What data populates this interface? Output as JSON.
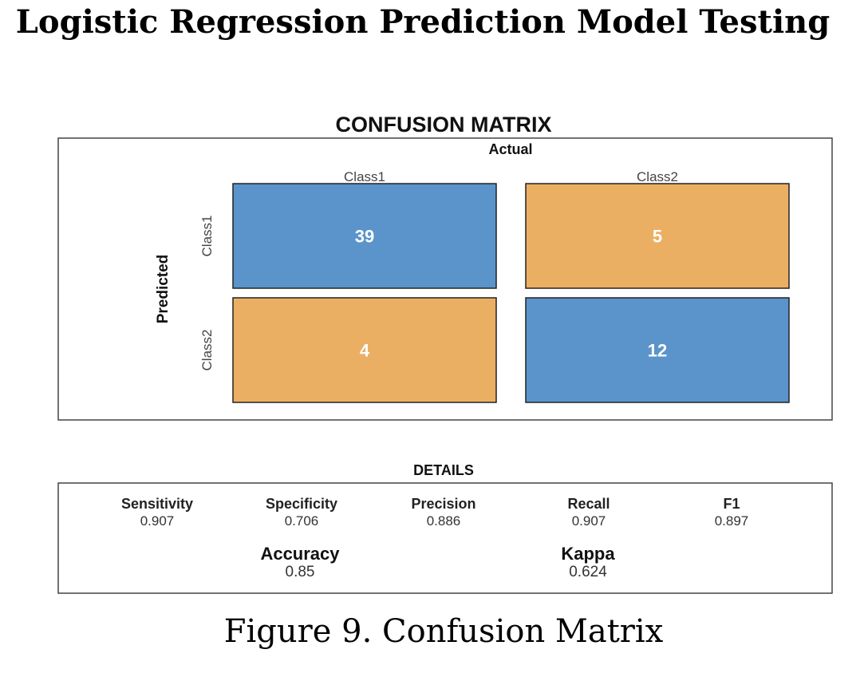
{
  "heading": "Logistic Regression Prediction Model Testing",
  "caption": "Figure 9. Confusion Matrix",
  "colors": {
    "correct": "#5A94CB",
    "incorrect": "#EBAF63",
    "border": "#222222"
  },
  "chart_data": {
    "type": "heatmap",
    "title": "CONFUSION MATRIX",
    "xlabel": "Actual",
    "ylabel": "Predicted",
    "x_categories": [
      "Class1",
      "Class2"
    ],
    "y_categories": [
      "Class1",
      "Class2"
    ],
    "cells": [
      {
        "predicted": "Class1",
        "actual": "Class1",
        "value": 39
      },
      {
        "predicted": "Class1",
        "actual": "Class2",
        "value": 5
      },
      {
        "predicted": "Class2",
        "actual": "Class1",
        "value": 4
      },
      {
        "predicted": "Class2",
        "actual": "Class2",
        "value": 12
      }
    ]
  },
  "details": {
    "title": "DETAILS",
    "metrics": [
      {
        "label": "Sensitivity",
        "value": "0.907"
      },
      {
        "label": "Specificity",
        "value": "0.706"
      },
      {
        "label": "Precision",
        "value": "0.886"
      },
      {
        "label": "Recall",
        "value": "0.907"
      },
      {
        "label": "F1",
        "value": "0.897"
      }
    ],
    "summary": [
      {
        "label": "Accuracy",
        "value": "0.85"
      },
      {
        "label": "Kappa",
        "value": "0.624"
      }
    ]
  }
}
